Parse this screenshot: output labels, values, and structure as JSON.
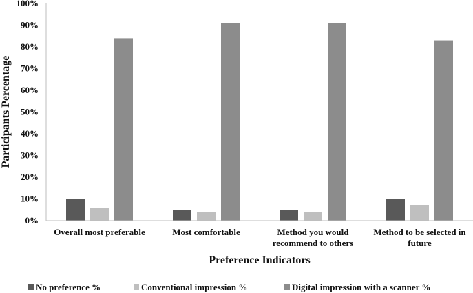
{
  "chart_data": {
    "type": "bar",
    "title": "",
    "xlabel": "Preference Indicators",
    "ylabel": "Participants Percentage",
    "ylim": [
      0,
      100
    ],
    "y_ticks": [
      "0%",
      "10%",
      "20%",
      "30%",
      "40%",
      "50%",
      "60%",
      "70%",
      "80%",
      "90%",
      "100%"
    ],
    "grid": false,
    "legend_position": "bottom",
    "categories": [
      [
        "Overall most preferable"
      ],
      [
        "Most comfortable"
      ],
      [
        "Method you would",
        "recommend to others"
      ],
      [
        "Method to be selected in",
        "future"
      ]
    ],
    "series": [
      {
        "name": "No preference %",
        "color": "#595959",
        "values": [
          10,
          5,
          5,
          10
        ]
      },
      {
        "name": "Conventional impression %",
        "color": "#bfbfbf",
        "values": [
          6,
          4,
          4,
          7
        ]
      },
      {
        "name": "Digital impression with a scanner %",
        "color": "#8c8c8c",
        "values": [
          84,
          91,
          91,
          83
        ]
      }
    ]
  }
}
